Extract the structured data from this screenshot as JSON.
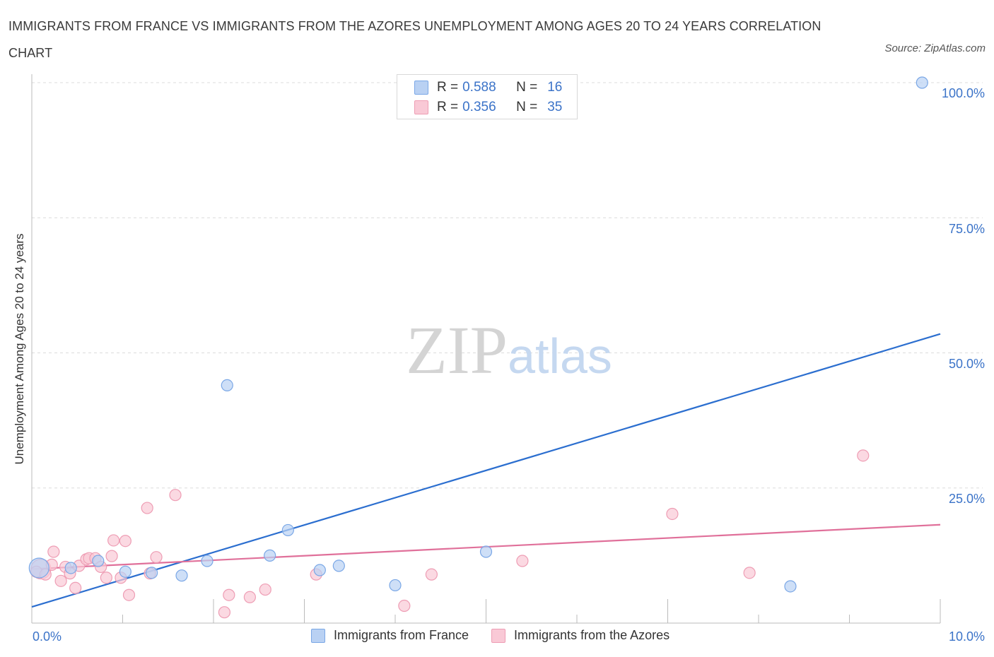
{
  "chart_data": {
    "type": "scatter",
    "title": "IMMIGRANTS FROM FRANCE VS IMMIGRANTS FROM THE AZORES UNEMPLOYMENT AMONG AGES 20 TO 24 YEARS CORRELATION CHART",
    "source": "Source: ZipAtlas.com",
    "xlabel": "",
    "ylabel": "Unemployment Among Ages 20 to 24 years",
    "xlim": [
      0,
      10
    ],
    "ylim": [
      0,
      100
    ],
    "x_tick_labels": [
      "0.0%",
      "10.0%"
    ],
    "y_ticks": [
      25,
      50,
      75,
      100
    ],
    "y_tick_labels": [
      "25.0%",
      "50.0%",
      "75.0%",
      "100.0%"
    ],
    "grid": true,
    "watermark": "ZIPatlas",
    "legend_stats": [
      {
        "r_label": "R =",
        "r_value": "0.588",
        "n_label": "N =",
        "n_value": "16"
      },
      {
        "r_label": "R =",
        "r_value": "0.356",
        "n_label": "N =",
        "n_value": "35"
      }
    ],
    "series": [
      {
        "name": "Immigrants from France",
        "color": "#7aa7e6",
        "fill": "#b9d1f3",
        "trend_color": "#2b6ecf",
        "trend": [
          [
            0,
            3.0
          ],
          [
            10,
            53.5
          ]
        ],
        "points": [
          {
            "x": 0.08,
            "y": 10.2,
            "big": true
          },
          {
            "x": 0.43,
            "y": 10.2
          },
          {
            "x": 0.73,
            "y": 11.5
          },
          {
            "x": 1.03,
            "y": 9.5
          },
          {
            "x": 1.32,
            "y": 9.3
          },
          {
            "x": 1.65,
            "y": 8.8
          },
          {
            "x": 1.93,
            "y": 11.5
          },
          {
            "x": 2.15,
            "y": 44.0
          },
          {
            "x": 2.82,
            "y": 17.2
          },
          {
            "x": 2.62,
            "y": 12.5
          },
          {
            "x": 3.17,
            "y": 9.8
          },
          {
            "x": 3.38,
            "y": 10.6
          },
          {
            "x": 4.0,
            "y": 7.0
          },
          {
            "x": 5.0,
            "y": 13.2
          },
          {
            "x": 8.35,
            "y": 6.8
          },
          {
            "x": 9.8,
            "y": 100.0
          }
        ]
      },
      {
        "name": "Immigrants from the Azores",
        "color": "#ee9db4",
        "fill": "#f9c9d6",
        "trend_color": "#e0709a",
        "trend": [
          [
            0,
            10.0
          ],
          [
            10,
            18.2
          ]
        ],
        "points": [
          {
            "x": 0.1,
            "y": 10.0,
            "big": true
          },
          {
            "x": 0.05,
            "y": 9.5
          },
          {
            "x": 0.15,
            "y": 9.0
          },
          {
            "x": 0.22,
            "y": 10.8
          },
          {
            "x": 0.24,
            "y": 13.2
          },
          {
            "x": 0.32,
            "y": 7.8
          },
          {
            "x": 0.37,
            "y": 10.4
          },
          {
            "x": 0.42,
            "y": 9.2
          },
          {
            "x": 0.48,
            "y": 6.5
          },
          {
            "x": 0.52,
            "y": 10.6
          },
          {
            "x": 0.6,
            "y": 11.8
          },
          {
            "x": 0.63,
            "y": 12.0
          },
          {
            "x": 0.7,
            "y": 12.0
          },
          {
            "x": 0.76,
            "y": 10.4
          },
          {
            "x": 0.82,
            "y": 8.4
          },
          {
            "x": 0.88,
            "y": 12.4
          },
          {
            "x": 0.9,
            "y": 15.3
          },
          {
            "x": 0.98,
            "y": 8.4
          },
          {
            "x": 1.03,
            "y": 15.2
          },
          {
            "x": 1.07,
            "y": 5.2
          },
          {
            "x": 1.27,
            "y": 21.3
          },
          {
            "x": 1.3,
            "y": 9.2
          },
          {
            "x": 1.37,
            "y": 12.2
          },
          {
            "x": 1.58,
            "y": 23.7
          },
          {
            "x": 2.12,
            "y": 2.0
          },
          {
            "x": 2.17,
            "y": 5.2
          },
          {
            "x": 2.4,
            "y": 4.8
          },
          {
            "x": 2.57,
            "y": 6.2
          },
          {
            "x": 3.13,
            "y": 9.0
          },
          {
            "x": 4.1,
            "y": 3.2
          },
          {
            "x": 4.4,
            "y": 9.0
          },
          {
            "x": 5.4,
            "y": 11.5
          },
          {
            "x": 7.05,
            "y": 20.2
          },
          {
            "x": 7.9,
            "y": 9.3
          },
          {
            "x": 9.15,
            "y": 31.0
          }
        ]
      }
    ]
  }
}
